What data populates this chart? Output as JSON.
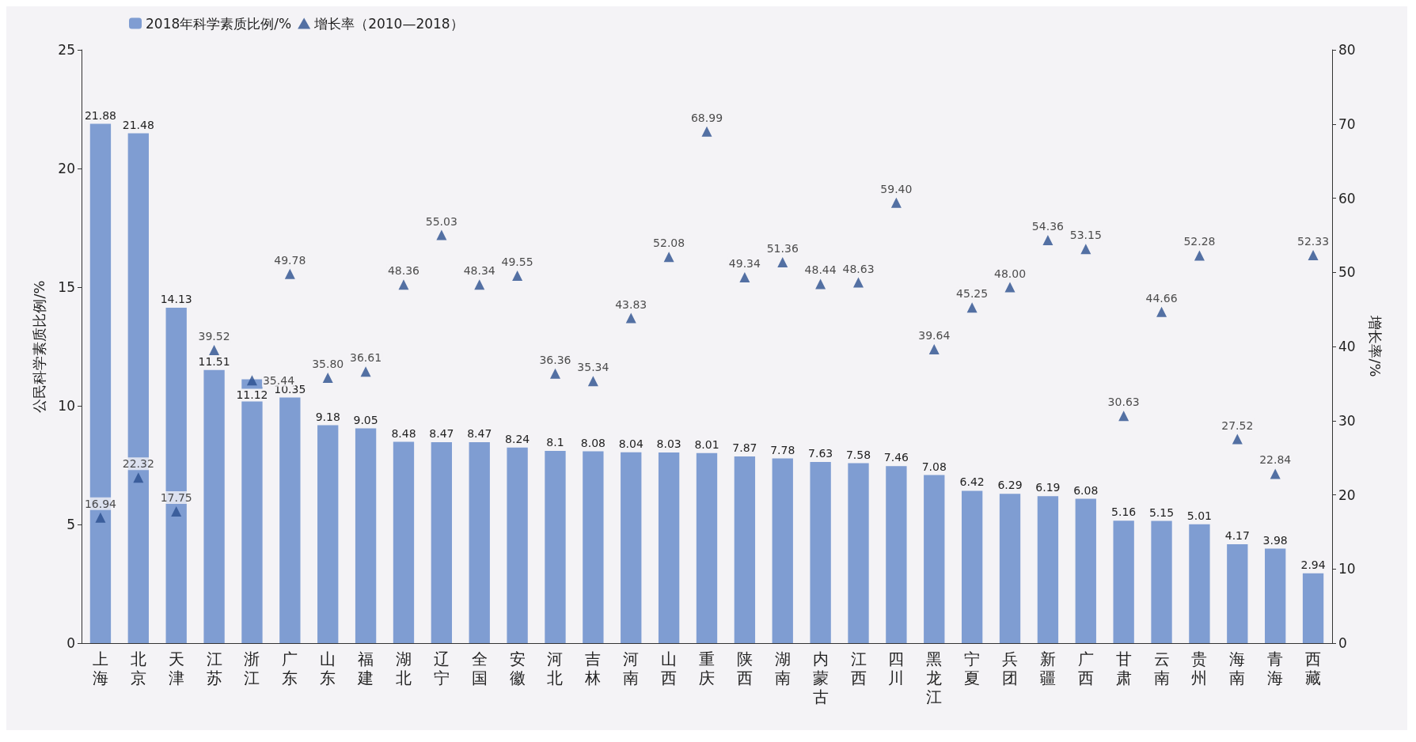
{
  "chart_data": {
    "type": "bar",
    "ylabel": "公民科学素质比例/%",
    "y2label": "增长率/%",
    "categories": [
      "上海",
      "北京",
      "天津",
      "江苏",
      "浙江",
      "广东",
      "山东",
      "福建",
      "湖北",
      "辽宁",
      "全国",
      "安徽",
      "河北",
      "吉林",
      "河南",
      "山西",
      "重庆",
      "陕西",
      "湖南",
      "内蒙古",
      "江西",
      "四川",
      "黑龙江",
      "宁夏",
      "兵团",
      "新疆",
      "广西",
      "甘肃",
      "云南",
      "贵州",
      "海南",
      "青海",
      "西藏"
    ],
    "series": [
      {
        "name": "2018年科学素质比例/%",
        "color": "#7f9dd2",
        "values": [
          21.88,
          21.48,
          14.13,
          11.51,
          11.12,
          10.35,
          9.18,
          9.05,
          8.48,
          8.47,
          8.47,
          8.24,
          8.1,
          8.08,
          8.04,
          8.03,
          8.01,
          7.87,
          7.78,
          7.63,
          7.58,
          7.46,
          7.08,
          6.42,
          6.29,
          6.19,
          6.08,
          5.16,
          5.15,
          5.01,
          4.17,
          3.98,
          2.94
        ],
        "value_labels": [
          "21.88",
          "21.48",
          "14.13",
          "11.51",
          "11.12",
          "10.35",
          "9.18",
          "9.05",
          "8.48",
          "8.47",
          "8.47",
          "8.24",
          "8.1",
          "8.08",
          "8.04",
          "8.03",
          "8.01",
          "7.87",
          "7.78",
          "7.63",
          "7.58",
          "7.46",
          "7.08",
          "6.42",
          "6.29",
          "6.19",
          "6.08",
          "5.16",
          "5.15",
          "5.01",
          "4.17",
          "3.98",
          "2.94"
        ]
      },
      {
        "name": "增长率（2010—2018）",
        "type": "scatter",
        "axis": "y2",
        "color": "#2b4f8e",
        "marker": "triangle",
        "values": [
          16.94,
          22.32,
          17.75,
          39.52,
          35.44,
          49.78,
          35.8,
          36.61,
          48.36,
          55.03,
          48.34,
          49.55,
          36.36,
          35.34,
          43.83,
          52.08,
          68.99,
          49.34,
          51.36,
          48.44,
          48.63,
          59.4,
          39.64,
          45.25,
          48.0,
          54.36,
          53.15,
          30.63,
          44.66,
          52.28,
          27.52,
          22.84,
          52.33
        ],
        "value_labels": [
          "16.94",
          "22.32",
          "17.75",
          "39.52",
          "35.44",
          "49.78",
          "35.80",
          "36.61",
          "48.36",
          "55.03",
          "48.34",
          "49.55",
          "36.36",
          "35.34",
          "43.83",
          "52.08",
          "68.99",
          "49.34",
          "51.36",
          "48.44",
          "48.63",
          "59.40",
          "39.64",
          "45.25",
          "48.00",
          "54.36",
          "53.15",
          "30.63",
          "44.66",
          "52.28",
          "27.52",
          "22.84",
          "52.33"
        ]
      }
    ],
    "ylim": [
      0,
      25
    ],
    "yticks": [
      0,
      5,
      10,
      15,
      20,
      25
    ],
    "y2lim": [
      0,
      80
    ],
    "y2ticks": [
      0,
      10,
      20,
      30,
      40,
      50,
      60,
      70,
      80
    ],
    "legend": "top left",
    "grid": false
  }
}
